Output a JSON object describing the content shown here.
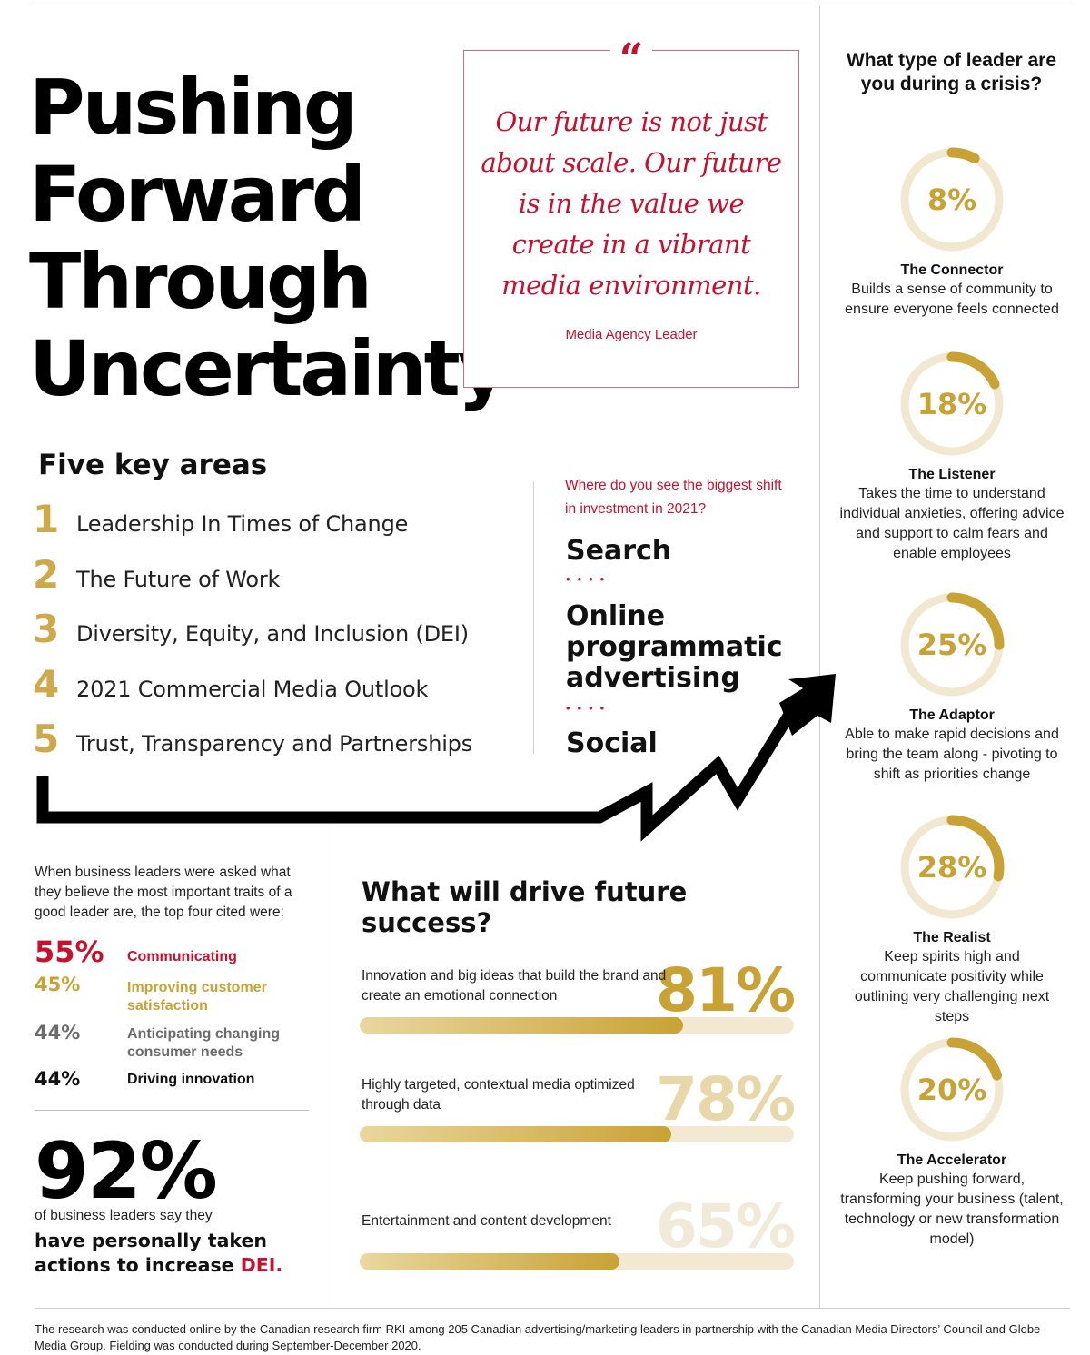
{
  "title": {
    "lines": [
      "Pushing",
      "Forward",
      "Through",
      "Uncertainty"
    ]
  },
  "quote": {
    "mark": "“",
    "text": "Our future is not just about scale. Our future is in the value we create in a vibrant media environment.",
    "source": "Media Agency Leader"
  },
  "key_areas": {
    "heading": "Five key areas",
    "items": [
      {
        "num": "1",
        "label": "Leadership In Times of Change"
      },
      {
        "num": "2",
        "label": "The Future of Work"
      },
      {
        "num": "3",
        "label": "Diversity, Equity, and Inclusion (DEI)"
      },
      {
        "num": "4",
        "label": "2021 Commercial Media Outlook"
      },
      {
        "num": "5",
        "label": "Trust, Transparency and Partnerships"
      }
    ]
  },
  "investment": {
    "question": "Where do you see the biggest shift in investment in 2021?",
    "items": [
      "Search",
      "Online programmatic advertising",
      "Social"
    ],
    "separator": "••••"
  },
  "leader_types": {
    "heading": "What type of leader are you during a crisis?",
    "items": [
      {
        "pct": "8%",
        "value": 8,
        "name": "The Connector",
        "desc": "Builds a sense of community to ensure everyone feels connected"
      },
      {
        "pct": "18%",
        "value": 18,
        "name": "The Listener",
        "desc": "Takes the time to understand individual anxieties, offering advice and support to calm fears and enable employees"
      },
      {
        "pct": "25%",
        "value": 25,
        "name": "The Adaptor",
        "desc": "Able to make rapid decisions and bring the team along - pivoting to shift as priorities change"
      },
      {
        "pct": "28%",
        "value": 28,
        "name": "The Realist",
        "desc": "Keep spirits high and communicate positivity while outlining very challenging next steps"
      },
      {
        "pct": "20%",
        "value": 20,
        "name": "The Accelerator",
        "desc": "Keep pushing forward, transforming your business (talent, technology or new transformation model)"
      }
    ]
  },
  "traits": {
    "intro": "When business leaders were asked what they believe the most important traits of a good leader are, the top four cited were:",
    "items": [
      {
        "pct": "55%",
        "label": "Communicating",
        "color": "#c8102e"
      },
      {
        "pct": "45%",
        "label": "Improving customer satisfaction",
        "color": "#c9a235"
      },
      {
        "pct": "44%",
        "label": "Anticipating changing consumer needs",
        "color": "#6b6b6b"
      },
      {
        "pct": "44%",
        "label": "Driving innovation",
        "color": "#111111"
      }
    ]
  },
  "dei": {
    "big": "92%",
    "sub": "of business leaders say they",
    "bold": "have personally taken actions to increase ",
    "highlight": "DEI."
  },
  "drivers": {
    "heading": "What will drive future success?",
    "items": [
      {
        "label": "Innovation and big ideas that build the brand and create an emotional connection",
        "pct": "81%",
        "value": 81,
        "color": "#c9a235"
      },
      {
        "label": "Highly targeted, contextual media optimized through data",
        "pct": "78%",
        "value": 78,
        "color": "#e8d7a8"
      },
      {
        "label": "Entertainment and content development",
        "pct": "65%",
        "value": 65,
        "color": "#f2ead8"
      }
    ]
  },
  "footnote": "The research was conducted online by the Canadian research firm RKI among 205 Canadian advertising/marketing leaders in partnership with the Canadian Media Directors’ Council and Globe Media Group. Fielding was conducted during September-December 2020.",
  "colors": {
    "red": "#c8102e",
    "gold": "#c9a235",
    "ring_track": "#f2e8cf"
  }
}
